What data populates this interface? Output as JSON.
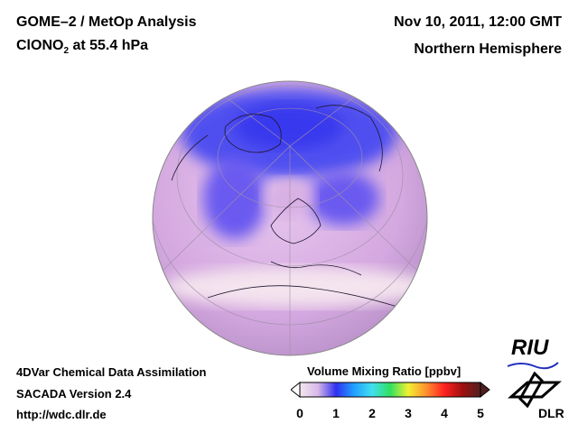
{
  "header": {
    "title_line1": "GOME–2 / MetOp Analysis",
    "species": "ClONO",
    "species_sub": "2",
    "level": " at 55.4 hPa",
    "date": "Nov 10, 2011, 12:00 GMT",
    "region": "Northern Hemisphere"
  },
  "footer": {
    "line1": "4DVar Chemical Data Assimilation",
    "line2": "SACADA Version 2.4",
    "line3": "http://wdc.dlr.de"
  },
  "colorbar": {
    "title": "Volume Mixing Ratio [ppbv]",
    "ticks": [
      "0",
      "1",
      "2",
      "3",
      "4",
      "5"
    ],
    "range": [
      0,
      5
    ],
    "colors": [
      "#f4e8ee",
      "#d8b8e8",
      "#3030f0",
      "#20a0ff",
      "#40e0f0",
      "#30e060",
      "#f0f030",
      "#ff9030",
      "#ff2020",
      "#a01010",
      "#502020"
    ]
  },
  "logos": {
    "riu": "RIU",
    "dlr": "DLR"
  }
}
